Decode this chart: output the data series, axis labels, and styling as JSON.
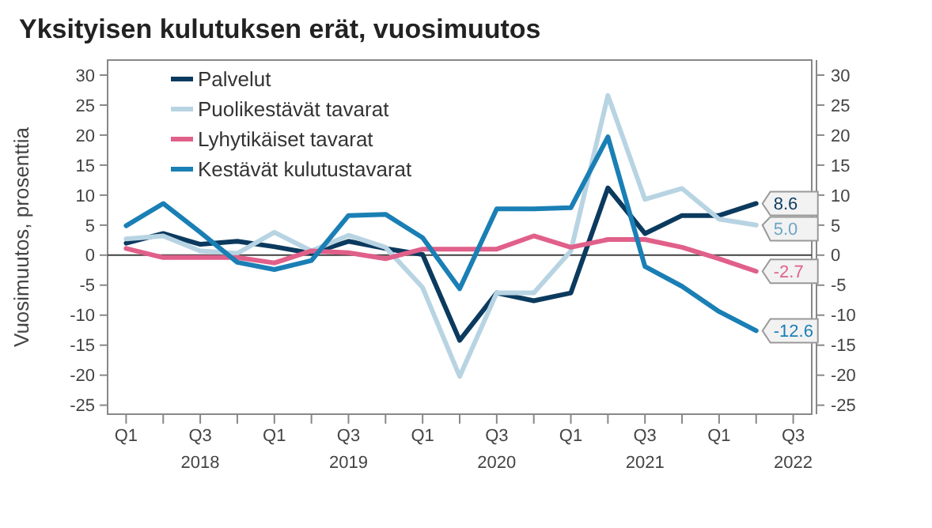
{
  "chart_data": {
    "type": "line",
    "title": "Yksityisen kulutuksen erät, vuosimuutos",
    "ylabel": "Vuosimuutos, prosenttia",
    "categories": [
      "Q1",
      null,
      "Q3\n2018",
      null,
      "Q1",
      null,
      "Q3\n2019",
      null,
      "Q1",
      null,
      "Q3\n2020",
      null,
      "Q1",
      null,
      "Q3\n2021",
      null,
      "Q1",
      null,
      "Q3\n2022"
    ],
    "ylim": [
      -26.5,
      32.5
    ],
    "yticks": [
      -25,
      -20,
      -15,
      -10,
      -5,
      0,
      5,
      10,
      15,
      20,
      25,
      30
    ],
    "y2lim": [
      -26.5,
      32.5
    ],
    "y2ticks": [
      -25,
      -20,
      -15,
      -10,
      -5,
      0,
      5,
      10,
      15,
      20,
      25,
      30
    ],
    "ref_lines": [
      {
        "axis": "y",
        "value": 0,
        "color": "#404040"
      }
    ],
    "legend": "top left",
    "grid": false,
    "line_style": "solid",
    "series": [
      {
        "name": "Palvelut",
        "color": "#0b3a5e",
        "values": [
          2.0,
          3.6,
          1.8,
          2.3,
          1.4,
          0.3,
          2.3,
          1.1,
          0.1,
          -14.2,
          -6.3,
          -7.6,
          -6.3,
          11.2,
          3.6,
          6.6,
          6.6,
          8.6,
          null
        ],
        "value_labels": [
          null,
          null,
          null,
          null,
          null,
          null,
          null,
          null,
          null,
          null,
          null,
          null,
          null,
          null,
          null,
          null,
          null,
          "8.6",
          null
        ]
      },
      {
        "name": "Puolikestävät tavarat",
        "color": "#b8d4e3",
        "values": [
          2.7,
          3.2,
          0.7,
          0.3,
          3.8,
          0.7,
          3.3,
          1.3,
          -5.4,
          -20.2,
          -6.3,
          -6.3,
          0.7,
          26.6,
          9.3,
          11.1,
          6.0,
          5.0,
          null
        ],
        "value_labels": [
          null,
          null,
          null,
          null,
          null,
          null,
          null,
          null,
          null,
          null,
          null,
          null,
          null,
          null,
          null,
          null,
          null,
          "5.0",
          null
        ]
      },
      {
        "name": "Lyhytikäiset tavarat",
        "color": "#e0608a",
        "values": [
          1.1,
          -0.4,
          -0.4,
          -0.4,
          -1.3,
          0.7,
          0.4,
          -0.6,
          1.0,
          1.0,
          1.0,
          3.2,
          1.3,
          2.6,
          2.6,
          1.3,
          -0.6,
          -2.7,
          null
        ],
        "value_labels": [
          null,
          null,
          null,
          null,
          null,
          null,
          null,
          null,
          null,
          null,
          null,
          null,
          null,
          null,
          null,
          null,
          null,
          "-2.7",
          null
        ]
      },
      {
        "name": "Kestävät kulutustavarat",
        "color": "#1a7fb5",
        "values": [
          4.9,
          8.6,
          3.8,
          -1.2,
          -2.4,
          -0.9,
          6.6,
          6.8,
          2.9,
          -5.6,
          7.7,
          7.7,
          7.9,
          19.7,
          -1.9,
          -5.2,
          -9.4,
          -12.6,
          null
        ],
        "value_labels": [
          null,
          null,
          null,
          null,
          null,
          null,
          null,
          null,
          null,
          null,
          null,
          null,
          null,
          null,
          null,
          null,
          null,
          "-12.6",
          null
        ]
      }
    ]
  }
}
